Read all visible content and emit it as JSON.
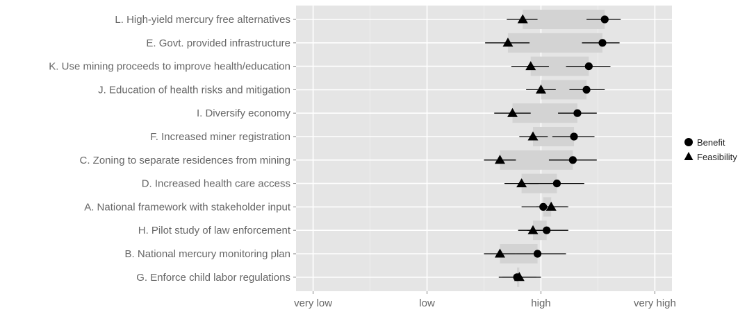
{
  "chart_data": {
    "type": "scatter",
    "title": "",
    "xlabel": "",
    "ylabel": "",
    "x_ticks": [
      "very low",
      "low",
      "high",
      "very high"
    ],
    "xlim": [
      0.85,
      4.15
    ],
    "grid": true,
    "legend_position": "right",
    "legend": [
      {
        "name": "Benefit",
        "shape": "circle"
      },
      {
        "name": "Feasibility",
        "shape": "triangle"
      }
    ],
    "categories": [
      "L. High-yield mercury free alternatives",
      "E. Govt. provided infrastructure",
      "K. Use mining proceeds to improve health/education",
      "J. Education of health risks and mitigation",
      "I. Diversify economy",
      "F. Increased miner registration",
      "C. Zoning to separate residences from mining",
      "D. Increased health care access",
      "A. National framework with stakeholder input",
      "H. Pilot study of law enforcement",
      "B. National mercury monitoring plan",
      "G. Enforce child labor regulations"
    ],
    "series": [
      {
        "name": "Benefit",
        "values": [
          3.56,
          3.54,
          3.42,
          3.4,
          3.32,
          3.29,
          3.28,
          3.14,
          3.02,
          3.05,
          2.97,
          2.79
        ],
        "lower": [
          3.4,
          3.36,
          3.22,
          3.25,
          3.15,
          3.1,
          3.07,
          2.9,
          2.83,
          2.88,
          2.78,
          2.63
        ],
        "upper": [
          3.7,
          3.69,
          3.61,
          3.56,
          3.49,
          3.47,
          3.49,
          3.38,
          3.24,
          3.24,
          3.22,
          3.0
        ]
      },
      {
        "name": "Feasibility",
        "values": [
          2.84,
          2.71,
          2.91,
          3.0,
          2.75,
          2.93,
          2.64,
          2.83,
          3.09,
          2.93,
          2.64,
          2.81
        ],
        "lower": [
          2.7,
          2.51,
          2.74,
          2.87,
          2.59,
          2.81,
          2.5,
          2.68,
          2.96,
          2.8,
          2.5,
          2.66
        ],
        "upper": [
          2.97,
          2.9,
          3.07,
          3.13,
          2.91,
          3.06,
          2.78,
          2.98,
          3.23,
          3.07,
          2.78,
          2.96
        ]
      }
    ],
    "range_bands": [
      [
        2.84,
        3.56
      ],
      [
        2.71,
        3.54
      ],
      [
        2.91,
        3.42
      ],
      [
        3.0,
        3.4
      ],
      [
        2.75,
        3.32
      ],
      [
        2.93,
        3.29
      ],
      [
        2.64,
        3.28
      ],
      [
        2.83,
        3.14
      ],
      [
        3.02,
        3.09
      ],
      [
        2.93,
        3.05
      ],
      [
        2.64,
        2.97
      ],
      [
        2.79,
        2.81
      ]
    ]
  },
  "colors": {
    "panel_bg": "#e5e5e5",
    "grid_major": "#ffffff",
    "band": "#d3d3d3",
    "marker": "#000000",
    "tick_label": "#666666"
  }
}
